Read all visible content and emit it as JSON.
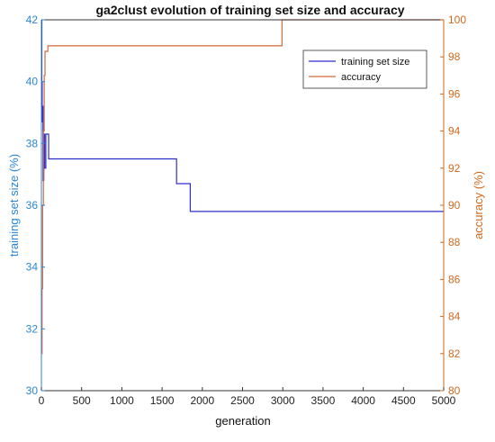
{
  "chart_data": {
    "type": "line",
    "title": "ga2clust evolution of training set size and accuracy",
    "xlabel": "generation",
    "ylabel_left": "training set size (%)",
    "ylabel_right": "accuracy (%)",
    "xlim": [
      0,
      5000
    ],
    "ylim_left": [
      30,
      42
    ],
    "ylim_right": [
      80,
      100
    ],
    "x_ticks": [
      "0",
      "500",
      "1000",
      "1500",
      "2000",
      "2500",
      "3000",
      "3500",
      "4000",
      "4500",
      "5000"
    ],
    "y_left_ticks": [
      "30",
      "32",
      "34",
      "36",
      "38",
      "40",
      "42"
    ],
    "y_right_ticks": [
      "80",
      "82",
      "84",
      "86",
      "88",
      "90",
      "92",
      "94",
      "96",
      "98",
      "100"
    ],
    "legend_position": "top-right",
    "grid": false,
    "colors": {
      "training_set_size": "#2f2fd0",
      "accuracy": "#d06a3a",
      "left_axis": "#2a86d6",
      "right_axis": "#d2691e"
    },
    "series": [
      {
        "name": "training set size",
        "axis": "left",
        "step": true,
        "x": [
          0,
          5,
          10,
          15,
          20,
          30,
          40,
          55,
          70,
          90,
          1680,
          1850,
          5000
        ],
        "y": [
          42.0,
          40.0,
          38.7,
          39.2,
          36.8,
          38.3,
          37.2,
          38.3,
          38.3,
          37.5,
          36.7,
          35.8,
          35.8
        ]
      },
      {
        "name": "accuracy",
        "axis": "right",
        "step": true,
        "x": [
          0,
          8,
          15,
          25,
          35,
          45,
          80,
          2990,
          5000
        ],
        "y": [
          82.0,
          85.5,
          90.0,
          94.0,
          97.0,
          98.3,
          98.6,
          100.0,
          100.0
        ]
      }
    ]
  }
}
